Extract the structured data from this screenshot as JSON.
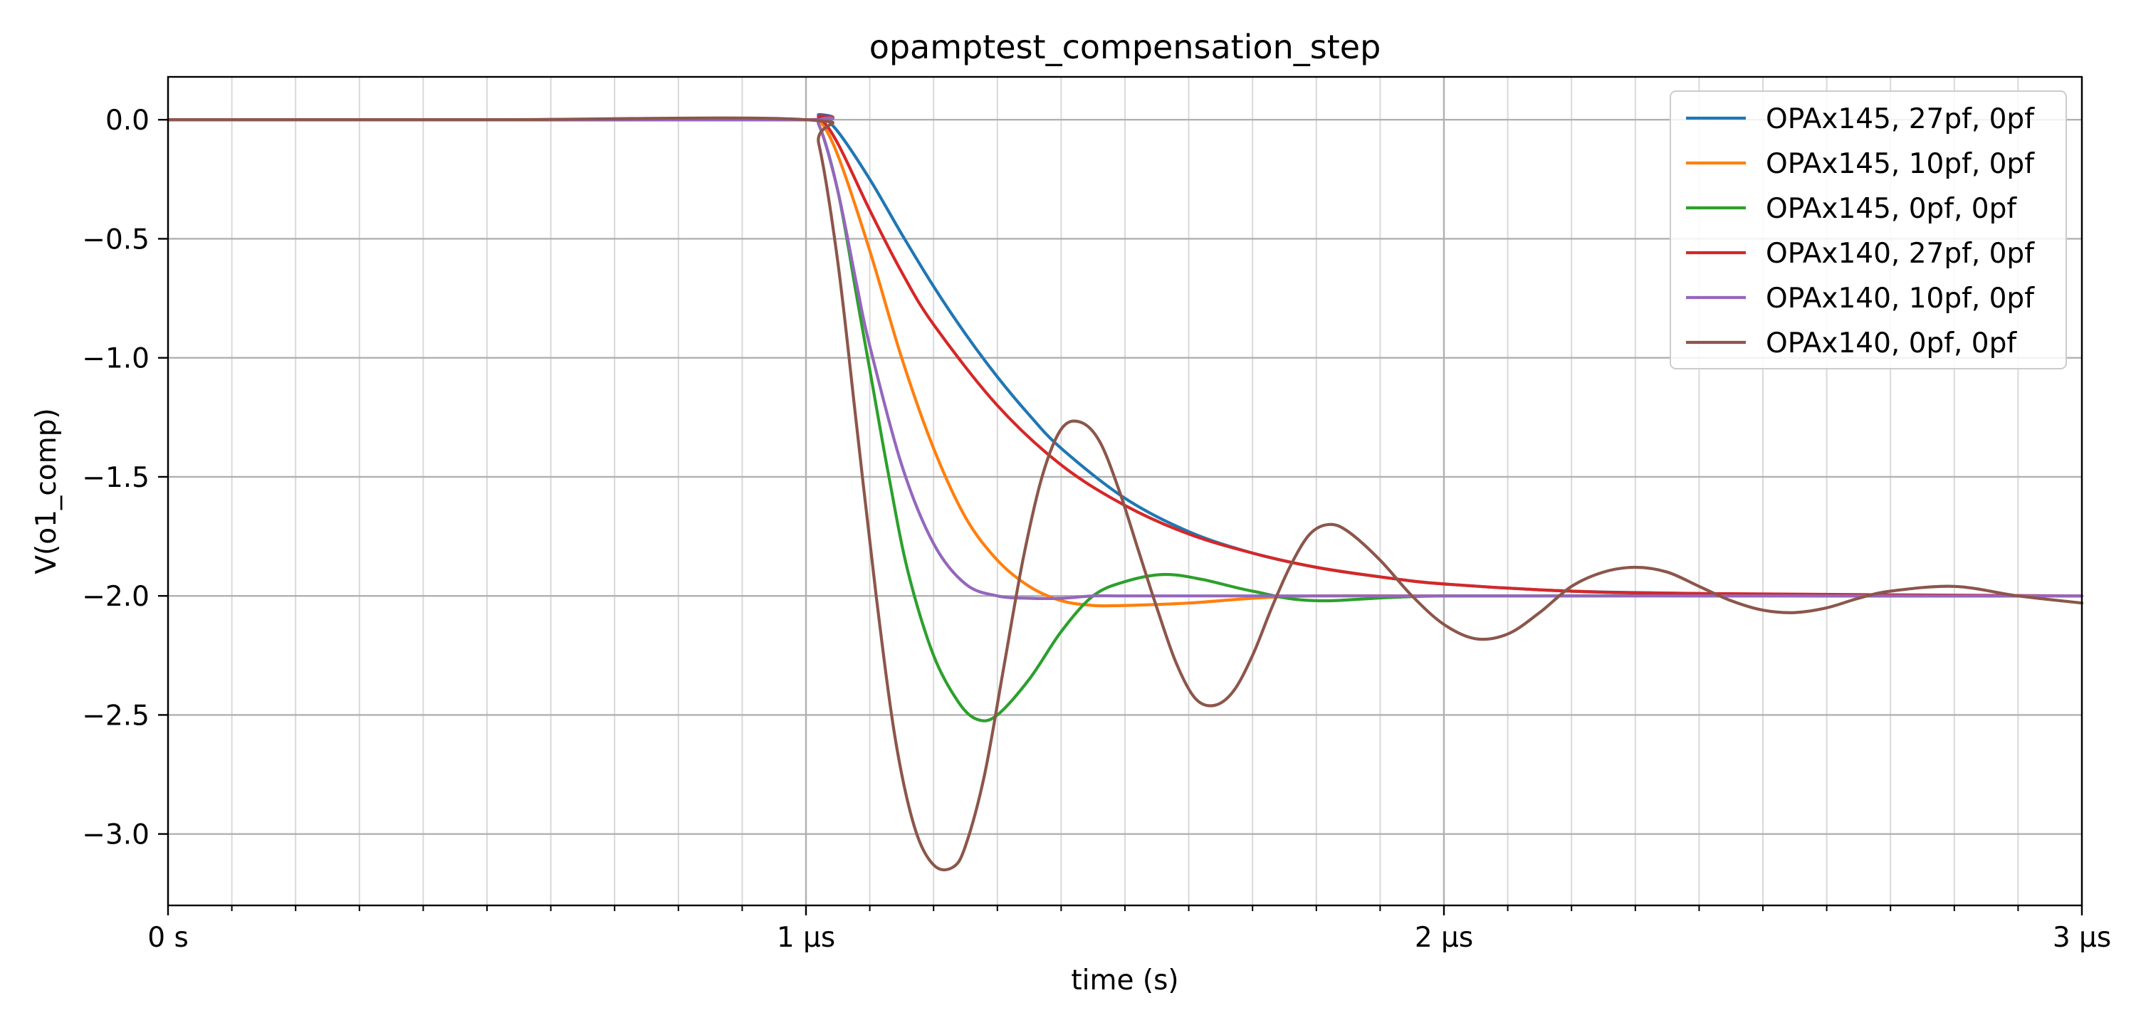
{
  "chart_data": {
    "type": "line",
    "title": "opamptest_compensation_step",
    "xlabel": "time (s)",
    "ylabel": "V(o1_comp)",
    "xlim": [
      0,
      3
    ],
    "x_unit": "µs",
    "ylim": [
      -3.3,
      0.18
    ],
    "xticks": [
      {
        "value": 0,
        "label": "0 s"
      },
      {
        "value": 1,
        "label": "1 µs"
      },
      {
        "value": 2,
        "label": "2 µs"
      },
      {
        "value": 3,
        "label": "3 µs"
      }
    ],
    "yticks": [
      {
        "value": 0,
        "label": "0.0"
      },
      {
        "value": -0.5,
        "label": "−0.5"
      },
      {
        "value": -1.0,
        "label": "−1.0"
      },
      {
        "value": -1.5,
        "label": "−1.5"
      },
      {
        "value": -2.0,
        "label": "−2.0"
      },
      {
        "value": -2.5,
        "label": "−2.5"
      },
      {
        "value": -3.0,
        "label": "−3.0"
      }
    ],
    "grid": true,
    "minor_grid": true,
    "legend_position": "top-right",
    "series": [
      {
        "name": "OPAx145, 27pf, 0pf",
        "color": "#1f77b4",
        "x": [
          0,
          0.5,
          1.0,
          1.02,
          1.05,
          1.1,
          1.15,
          1.2,
          1.25,
          1.3,
          1.35,
          1.4,
          1.5,
          1.6,
          1.7,
          1.8,
          1.9,
          2.0,
          2.2,
          2.4,
          2.6,
          3.0
        ],
        "y": [
          0,
          0,
          0,
          0.02,
          -0.05,
          -0.25,
          -0.48,
          -0.7,
          -0.9,
          -1.08,
          -1.24,
          -1.38,
          -1.59,
          -1.73,
          -1.82,
          -1.88,
          -1.92,
          -1.95,
          -1.98,
          -1.99,
          -2.0,
          -2.0
        ]
      },
      {
        "name": "OPAx145, 10pf, 0pf",
        "color": "#ff7f0e",
        "x": [
          0,
          0.5,
          1.0,
          1.02,
          1.05,
          1.1,
          1.15,
          1.2,
          1.25,
          1.3,
          1.35,
          1.4,
          1.45,
          1.5,
          1.6,
          1.7,
          1.8,
          2.0,
          2.5,
          3.0
        ],
        "y": [
          0,
          0,
          0,
          0.0,
          -0.15,
          -0.55,
          -1.0,
          -1.38,
          -1.67,
          -1.85,
          -1.96,
          -2.02,
          -2.04,
          -2.04,
          -2.03,
          -2.01,
          -2.0,
          -2.0,
          -2.0,
          -2.0
        ]
      },
      {
        "name": "OPAx145, 0pf, 0pf",
        "color": "#2ca02c",
        "x": [
          0,
          0.5,
          1.0,
          1.02,
          1.05,
          1.08,
          1.1,
          1.13,
          1.16,
          1.2,
          1.24,
          1.27,
          1.3,
          1.35,
          1.4,
          1.45,
          1.5,
          1.56,
          1.62,
          1.7,
          1.8,
          2.0,
          2.5,
          3.0
        ],
        "y": [
          0,
          0,
          0,
          -0.02,
          -0.3,
          -0.75,
          -1.05,
          -1.5,
          -1.9,
          -2.25,
          -2.45,
          -2.52,
          -2.5,
          -2.35,
          -2.15,
          -2.0,
          -1.94,
          -1.91,
          -1.93,
          -1.98,
          -2.02,
          -2.0,
          -2.0,
          -2.0
        ]
      },
      {
        "name": "OPAx140, 27pf, 0pf",
        "color": "#d62728",
        "x": [
          0,
          0.5,
          1.0,
          1.02,
          1.05,
          1.1,
          1.15,
          1.2,
          1.3,
          1.4,
          1.5,
          1.6,
          1.7,
          1.8,
          1.9,
          2.0,
          2.2,
          2.4,
          3.0
        ],
        "y": [
          0,
          0,
          0,
          0.01,
          -0.1,
          -0.38,
          -0.64,
          -0.86,
          -1.2,
          -1.45,
          -1.62,
          -1.74,
          -1.82,
          -1.88,
          -1.92,
          -1.95,
          -1.98,
          -1.99,
          -2.0
        ]
      },
      {
        "name": "OPAx140, 10pf, 0pf",
        "color": "#9467bd",
        "x": [
          0,
          0.5,
          1.0,
          1.02,
          1.05,
          1.08,
          1.1,
          1.15,
          1.2,
          1.25,
          1.3,
          1.35,
          1.4,
          1.45,
          1.5,
          1.6,
          2.0,
          3.0
        ],
        "y": [
          0,
          0,
          0,
          -0.02,
          -0.3,
          -0.7,
          -0.95,
          -1.45,
          -1.78,
          -1.95,
          -2.0,
          -2.01,
          -2.01,
          -2.0,
          -2.0,
          -2.0,
          -2.0,
          -2.0
        ]
      },
      {
        "name": "OPAx140, 0pf, 0pf",
        "color": "#8c564b",
        "x": [
          0,
          0.5,
          1.0,
          1.02,
          1.05,
          1.08,
          1.11,
          1.14,
          1.17,
          1.2,
          1.23,
          1.25,
          1.28,
          1.31,
          1.34,
          1.37,
          1.4,
          1.43,
          1.46,
          1.49,
          1.52,
          1.55,
          1.58,
          1.61,
          1.64,
          1.67,
          1.7,
          1.73,
          1.76,
          1.79,
          1.82,
          1.85,
          1.9,
          1.95,
          2.0,
          2.05,
          2.1,
          2.15,
          2.2,
          2.25,
          2.3,
          2.35,
          2.4,
          2.45,
          2.5,
          2.55,
          2.6,
          2.65,
          2.7,
          2.8,
          2.9,
          3.0
        ],
        "y": [
          0,
          0,
          0,
          -0.1,
          -0.6,
          -1.3,
          -2.0,
          -2.6,
          -2.97,
          -3.13,
          -3.14,
          -3.05,
          -2.75,
          -2.3,
          -1.85,
          -1.5,
          -1.3,
          -1.27,
          -1.35,
          -1.55,
          -1.8,
          -2.05,
          -2.28,
          -2.43,
          -2.46,
          -2.4,
          -2.25,
          -2.05,
          -1.87,
          -1.74,
          -1.7,
          -1.73,
          -1.85,
          -2.0,
          -2.12,
          -2.18,
          -2.16,
          -2.07,
          -1.96,
          -1.9,
          -1.88,
          -1.9,
          -1.96,
          -2.02,
          -2.06,
          -2.07,
          -2.05,
          -2.01,
          -1.98,
          -1.96,
          -2.0,
          -2.03
        ]
      }
    ]
  }
}
